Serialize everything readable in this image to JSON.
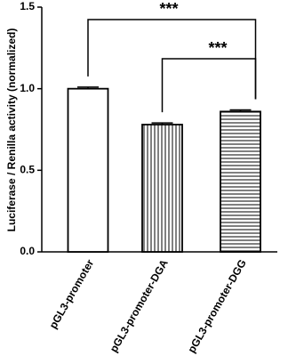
{
  "chart_data": {
    "type": "bar",
    "y_label": "Luciferase / Renilla activity (normalized)",
    "categories": [
      "pGL3-promoter",
      "pGL3-promoter-DGA",
      "pGL3-promoter-DGG"
    ],
    "values": [
      1.0,
      0.78,
      0.86
    ],
    "errors": [
      0.01,
      0.01,
      0.01
    ],
    "hatches": [
      "none",
      "vertical",
      "horizontal"
    ],
    "color": "#000000",
    "ylim": [
      0,
      1.5
    ],
    "yticks": [
      {
        "value": 0,
        "label": "0.0"
      },
      {
        "value": 0.5,
        "label": "0.5"
      },
      {
        "value": 1.0,
        "label": "1.0"
      },
      {
        "value": 1.5,
        "label": "1.5"
      }
    ],
    "annotations": [
      "***",
      "***"
    ]
  }
}
